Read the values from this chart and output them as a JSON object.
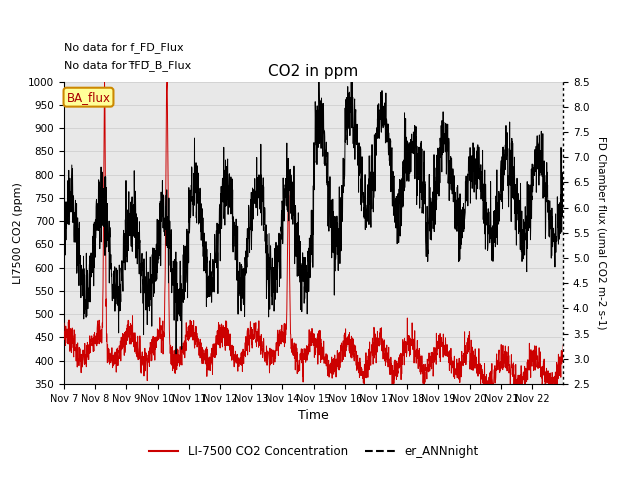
{
  "title": "CO2 in ppm",
  "xlabel": "Time",
  "ylabel_left": "LI7500 CO2 (ppm)",
  "ylabel_right": "FD Chamber flux (umal CO2 m-2 s-1)",
  "ylim_left": [
    350,
    1000
  ],
  "ylim_right": [
    2.5,
    8.5
  ],
  "yticks_left": [
    350,
    400,
    450,
    500,
    550,
    600,
    650,
    700,
    750,
    800,
    850,
    900,
    950,
    1000
  ],
  "yticks_right": [
    2.5,
    3.0,
    3.5,
    4.0,
    4.5,
    5.0,
    5.5,
    6.0,
    6.5,
    7.0,
    7.5,
    8.0,
    8.5
  ],
  "xticklabels": [
    "Nov 7",
    "Nov 8",
    "Nov 9",
    "Nov 10",
    "Nov 11",
    "Nov 12",
    "Nov 13",
    "Nov 14",
    "Nov 15",
    "Nov 16",
    "Nov 17",
    "Nov 18",
    "Nov 19",
    "Nov 20",
    "Nov 21",
    "Nov 22"
  ],
  "note1": "No data for f_FD_Flux",
  "note2": "No data for f̅FD̅_B_Flux",
  "ba_flux_label": "BA_flux",
  "legend_entries": [
    "LI-7500 CO2 Concentration",
    "er_ANNnight"
  ],
  "line1_color": "#cc0000",
  "line2_color": "#000000",
  "background_color": "#ffffff",
  "grid_color": "#d0d0d0"
}
